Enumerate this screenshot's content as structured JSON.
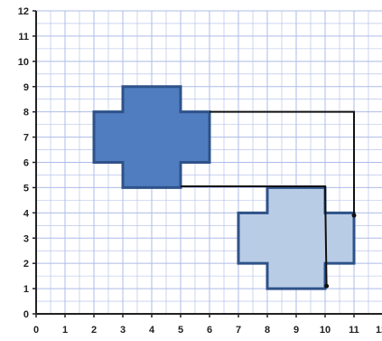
{
  "grid": {
    "x_ticks": [
      "0",
      "1",
      "2",
      "3",
      "4",
      "5",
      "6",
      "7",
      "8",
      "9",
      "10",
      "11",
      "12"
    ],
    "y_ticks": [
      "0",
      "1",
      "2",
      "3",
      "4",
      "5",
      "6",
      "7",
      "8",
      "9",
      "10",
      "11",
      "12"
    ],
    "x_range": [
      0,
      12
    ],
    "y_range": [
      0,
      12
    ]
  },
  "shapes": {
    "original": {
      "fill": "#4f7dbf",
      "stroke": "#2e5289",
      "vertices": [
        [
          3,
          9
        ],
        [
          5,
          9
        ],
        [
          5,
          8
        ],
        [
          6,
          8
        ],
        [
          6,
          6
        ],
        [
          5,
          6
        ],
        [
          5,
          5
        ],
        [
          3,
          5
        ],
        [
          3,
          6
        ],
        [
          2,
          6
        ],
        [
          2,
          8
        ],
        [
          3,
          8
        ]
      ]
    },
    "image": {
      "fill": "#b9cce6",
      "stroke": "#2e5289",
      "vertices": [
        [
          8,
          5
        ],
        [
          10,
          5
        ],
        [
          10,
          4
        ],
        [
          11,
          4
        ],
        [
          11,
          2
        ],
        [
          10,
          2
        ],
        [
          10,
          1
        ],
        [
          8,
          1
        ],
        [
          8,
          2
        ],
        [
          7,
          2
        ],
        [
          7,
          4
        ],
        [
          8,
          4
        ]
      ]
    }
  },
  "connectors": {
    "color": "#111111",
    "paths": [
      [
        [
          6,
          8
        ],
        [
          11,
          8
        ],
        [
          11,
          3.9
        ]
      ],
      [
        [
          5,
          5.05
        ],
        [
          10,
          5.05
        ],
        [
          10.05,
          1.1
        ]
      ]
    ],
    "dots": [
      [
        11,
        3.9
      ],
      [
        10.05,
        1.1
      ]
    ]
  },
  "colors": {
    "grid_line": "#aebbe8",
    "axis": "#222222"
  }
}
